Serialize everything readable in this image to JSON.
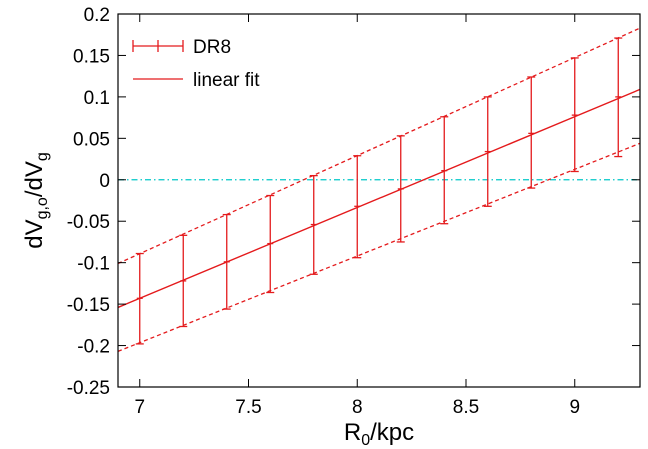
{
  "chart_data": {
    "type": "line",
    "xlabel": {
      "main": "R",
      "sub": "0",
      "rest": "/kpc"
    },
    "ylabel": {
      "a": "dV",
      "a_sub": "g,o",
      "b": "/dV",
      "b_sub": "g"
    },
    "xlim": [
      6.9,
      9.3
    ],
    "ylim": [
      -0.25,
      0.2
    ],
    "x_ticks": [
      7,
      7.5,
      8,
      8.5,
      9
    ],
    "x_tick_labels": [
      "7",
      "7.5",
      "8",
      "8.5",
      "9"
    ],
    "y_ticks": [
      -0.25,
      -0.2,
      -0.15,
      -0.1,
      -0.05,
      0,
      0.05,
      0.1,
      0.15,
      0.2
    ],
    "y_tick_labels": [
      "-0.25",
      "-0.2",
      "-0.15",
      "-0.1",
      "-0.05",
      "0",
      "0.05",
      "0.1",
      "0.15",
      "0.2"
    ],
    "legend_position": "top-left",
    "series": [
      {
        "name": "DR8",
        "kind": "errorbar",
        "color": "#e41a1c",
        "x": [
          7.0,
          7.2,
          7.4,
          7.6,
          7.8,
          8.0,
          8.2,
          8.4,
          8.6,
          8.8,
          9.0,
          9.2
        ],
        "y": [
          -0.143,
          -0.122,
          -0.099,
          -0.077,
          -0.054,
          -0.032,
          -0.011,
          0.011,
          0.034,
          0.056,
          0.078,
          0.1
        ],
        "yerr_low": [
          -0.198,
          -0.177,
          -0.156,
          -0.136,
          -0.114,
          -0.094,
          -0.075,
          -0.053,
          -0.032,
          -0.01,
          0.01,
          0.028
        ],
        "yerr_high": [
          -0.089,
          -0.067,
          -0.042,
          -0.019,
          0.005,
          0.029,
          0.053,
          0.076,
          0.1,
          0.124,
          0.147,
          0.171
        ]
      },
      {
        "name": "linear fit",
        "kind": "line",
        "color": "#e41a1c",
        "x": [
          6.9,
          9.3
        ],
        "y": [
          -0.154,
          0.109
        ]
      }
    ],
    "bands": [
      {
        "kind": "dashed",
        "color": "#e41a1c",
        "x": [
          6.9,
          9.3
        ],
        "y": [
          -0.207,
          0.044
        ]
      },
      {
        "kind": "dashed",
        "color": "#e41a1c",
        "x": [
          6.9,
          9.3
        ],
        "y": [
          -0.101,
          0.183
        ]
      }
    ],
    "reference_line": {
      "y": 0,
      "color": "#00c8c8",
      "style": "dash-dot"
    }
  }
}
